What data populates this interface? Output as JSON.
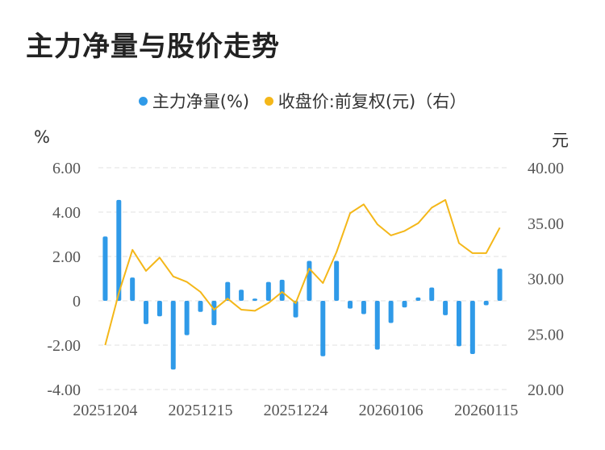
{
  "title": "主力净量与股价走势",
  "colors": {
    "bar": "#2f9ae8",
    "line": "#f4b719",
    "grid": "#e2e2e2",
    "tick": "#555555"
  },
  "units": {
    "left": "%",
    "right": "元"
  },
  "chart_data": {
    "type": "bar+line",
    "legend": [
      {
        "label": "主力净量(%)",
        "color": "#2f9ae8"
      },
      {
        "label": "收盘价:前复权(元)（右）",
        "color": "#f4b719"
      }
    ],
    "y_left": {
      "min": -4,
      "max": 6,
      "ticks": [
        "6.00",
        "4.00",
        "2.00",
        "0",
        "-2.00",
        "-4.00"
      ]
    },
    "y_right": {
      "min": 20,
      "max": 40,
      "ticks": [
        "40.00",
        "35.00",
        "30.00",
        "25.00",
        "20.00"
      ]
    },
    "x_tick_labels": [
      "20251204",
      "20251215",
      "20251224",
      "20260106",
      "20260115"
    ],
    "x_tick_index": [
      0,
      7,
      14,
      21,
      28
    ],
    "series": [
      {
        "name": "主力净量(%)",
        "type": "bar",
        "axis": "left",
        "values": [
          2.9,
          4.55,
          1.05,
          -1.05,
          -0.7,
          -3.1,
          -1.55,
          -0.5,
          -1.1,
          0.85,
          0.5,
          0.1,
          0.85,
          0.95,
          -0.75,
          1.8,
          -2.5,
          1.8,
          -0.35,
          -0.6,
          -2.2,
          -1.0,
          -0.3,
          0.15,
          0.6,
          -0.65,
          -2.05,
          -2.4,
          -0.2,
          1.45
        ]
      },
      {
        "name": "收盘价:前复权(元)（右）",
        "type": "line",
        "axis": "right",
        "values": [
          24.0,
          28.7,
          32.6,
          30.7,
          31.9,
          30.2,
          29.7,
          28.8,
          27.2,
          28.2,
          27.2,
          27.1,
          27.8,
          28.8,
          27.8,
          30.9,
          29.6,
          32.4,
          35.9,
          36.7,
          34.9,
          33.9,
          34.3,
          35.0,
          36.4,
          37.1,
          33.2,
          32.3,
          32.3,
          34.6
        ]
      }
    ]
  }
}
